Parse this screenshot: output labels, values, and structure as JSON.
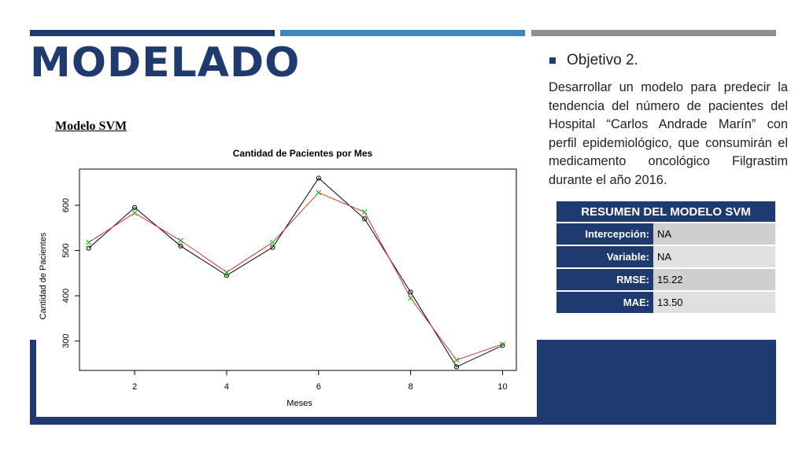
{
  "slide": {
    "title": "MODELADO",
    "subtitle": "Modelo SVM",
    "bar_colors": [
      "#1f3a6e",
      "#3d86c0",
      "#8f8f8f"
    ]
  },
  "objective": {
    "label": "Objetivo 2.",
    "description": "Desarrollar un modelo para predecir la tendencia del número de pacientes del Hospital “Carlos Andrade Marín” con perfil epidemiológico, que consumirán el medicamento oncológico Filgrastim durante el año 2016."
  },
  "summary": {
    "header": "RESUMEN DEL MODELO SVM",
    "rows": [
      {
        "label": "Intercepción:",
        "value": "NA"
      },
      {
        "label": "Variable:",
        "value": "NA"
      },
      {
        "label": "RMSE:",
        "value": "15.22"
      },
      {
        "label": "MAE:",
        "value": "13.50"
      }
    ]
  },
  "chart_data": {
    "type": "line",
    "title": "Cantidad de Pacientes por Mes",
    "xlabel": "Meses",
    "ylabel": "Cantidad de Pacientes",
    "x": [
      1,
      2,
      3,
      4,
      5,
      6,
      7,
      8,
      9,
      10
    ],
    "xticks": [
      2,
      4,
      6,
      8,
      10
    ],
    "yticks": [
      300,
      400,
      500,
      600
    ],
    "xlim": [
      0.8,
      10.3
    ],
    "ylim": [
      235,
      680
    ],
    "grid": false,
    "series": [
      {
        "values": [
          505,
          595,
          510,
          445,
          507,
          660,
          570,
          408,
          243,
          290
        ],
        "color": "#000000",
        "marker": "circle"
      },
      {
        "values": [
          518,
          583,
          522,
          452,
          518,
          628,
          585,
          395,
          258,
          293
        ],
        "color": "#e03030",
        "marker": "cross",
        "marker_color": "#22bb22"
      }
    ]
  }
}
